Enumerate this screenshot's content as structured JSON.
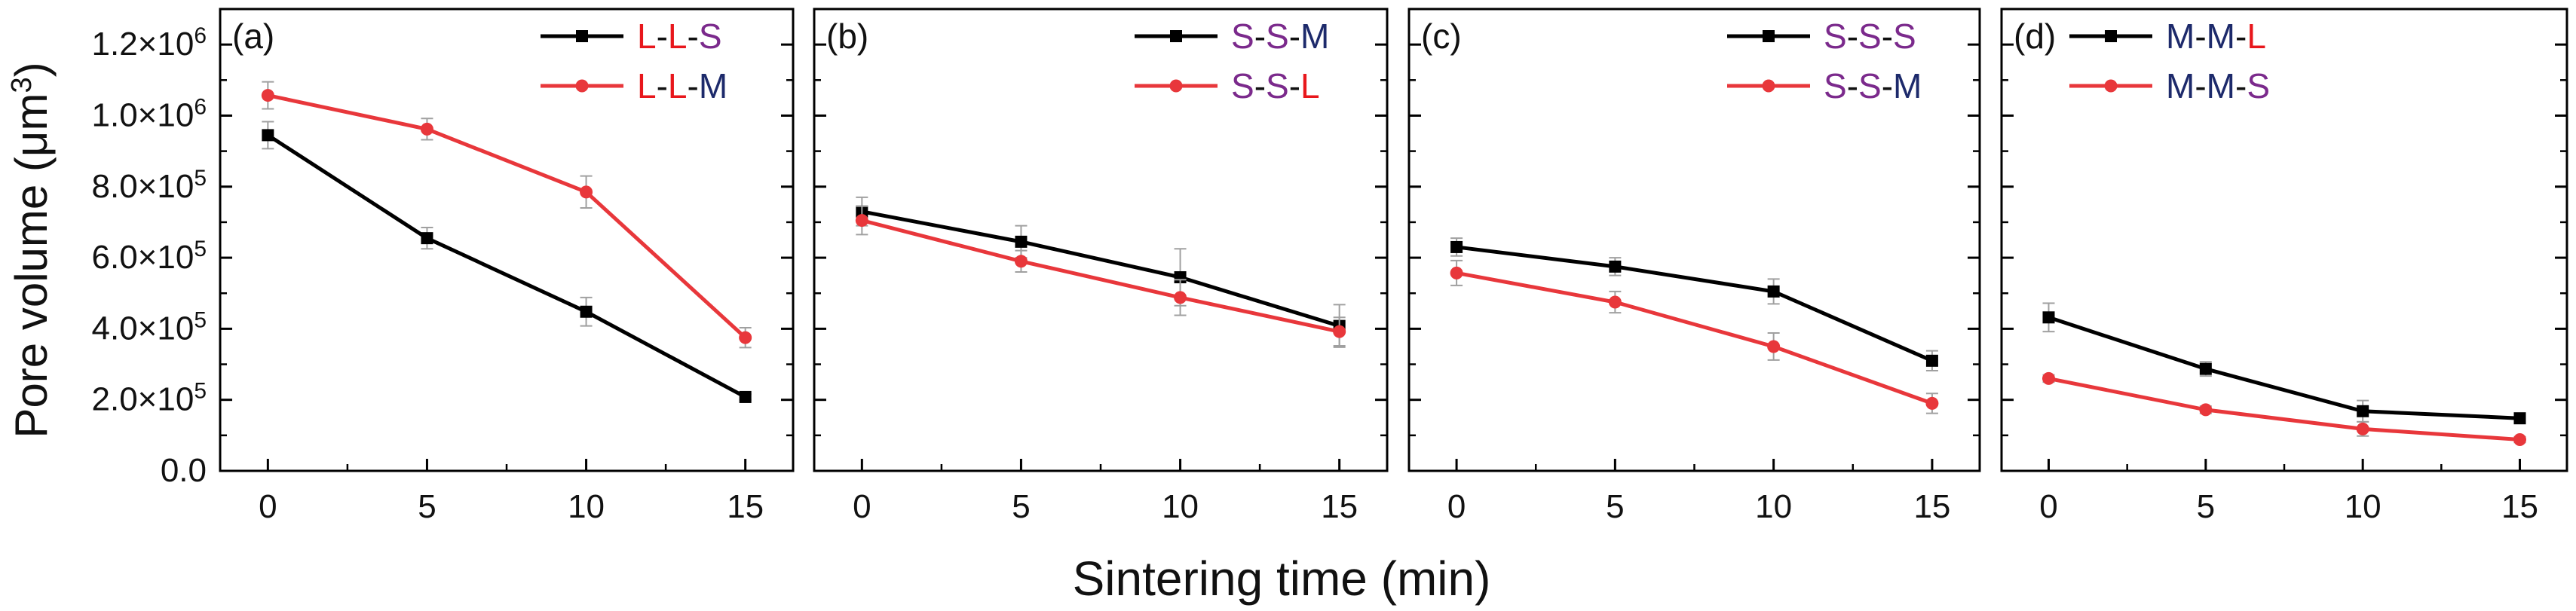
{
  "y_axis": {
    "label_main": "Pore volume (μm",
    "label_sup": "3",
    "label_close": ")",
    "ticks": [
      {
        "value": 0,
        "mantissa": "0.0",
        "exp": ""
      },
      {
        "value": 200000,
        "mantissa": "2.0×10",
        "exp": "5"
      },
      {
        "value": 400000,
        "mantissa": "4.0×10",
        "exp": "5"
      },
      {
        "value": 600000,
        "mantissa": "6.0×10",
        "exp": "5"
      },
      {
        "value": 800000,
        "mantissa": "8.0×10",
        "exp": "5"
      },
      {
        "value": 1000000,
        "mantissa": "1.0×10",
        "exp": "6"
      },
      {
        "value": 1200000,
        "mantissa": "1.2×10",
        "exp": "6"
      }
    ]
  },
  "x_axis": {
    "label": "Sintering time (min)",
    "ticks": [
      "0",
      "5",
      "10",
      "15"
    ]
  },
  "colors": {
    "black_series": "#000000",
    "red_series": "#e8373b",
    "error_bar": "#a0a0a0",
    "letter_L": "#e8171c",
    "letter_S": "#7b2a8c",
    "letter_M": "#1d2a6b"
  },
  "chart_data": [
    {
      "type": "line",
      "panel_label": "(a)",
      "x": [
        0,
        5,
        10,
        15
      ],
      "ylim": [
        0,
        1300000
      ],
      "xlim": [
        -1.5,
        16.5
      ],
      "grid": false,
      "legend_position": "top-right",
      "series": [
        {
          "name": "L-L-S",
          "parts": [
            "L",
            "L",
            "S"
          ],
          "color": "black",
          "marker": "square",
          "values": [
            945000,
            655000,
            448000,
            208000
          ],
          "errors": [
            38000,
            30000,
            40000,
            8000
          ]
        },
        {
          "name": "L-L-M",
          "parts": [
            "L",
            "L",
            "M"
          ],
          "color": "red",
          "marker": "circle",
          "values": [
            1057000,
            962000,
            785000,
            375000
          ],
          "errors": [
            38000,
            30000,
            45000,
            28000
          ]
        }
      ]
    },
    {
      "type": "line",
      "panel_label": "(b)",
      "x": [
        0,
        5,
        10,
        15
      ],
      "ylim": [
        0,
        1300000
      ],
      "xlim": [
        -1.5,
        16.5
      ],
      "grid": false,
      "legend_position": "top-right",
      "series": [
        {
          "name": "S-S-M",
          "parts": [
            "S",
            "S",
            "M"
          ],
          "color": "black",
          "marker": "square",
          "values": [
            730000,
            645000,
            545000,
            408000
          ],
          "errors": [
            40000,
            45000,
            80000,
            60000
          ]
        },
        {
          "name": "S-S-L",
          "parts": [
            "S",
            "S",
            "L"
          ],
          "color": "red",
          "marker": "circle",
          "values": [
            705000,
            590000,
            488000,
            392000
          ],
          "errors": [
            40000,
            30000,
            50000,
            40000
          ]
        }
      ]
    },
    {
      "type": "line",
      "panel_label": "(c)",
      "x": [
        0,
        5,
        10,
        15
      ],
      "ylim": [
        0,
        1300000
      ],
      "xlim": [
        -1.5,
        16.5
      ],
      "grid": false,
      "legend_position": "top-right",
      "series": [
        {
          "name": "S-S-S",
          "parts": [
            "S",
            "S",
            "S"
          ],
          "color": "black",
          "marker": "square",
          "values": [
            630000,
            575000,
            505000,
            310000
          ],
          "errors": [
            25000,
            25000,
            35000,
            28000
          ]
        },
        {
          "name": "S-S-M",
          "parts": [
            "S",
            "S",
            "M"
          ],
          "color": "red",
          "marker": "circle",
          "values": [
            557000,
            475000,
            350000,
            190000
          ],
          "errors": [
            35000,
            30000,
            38000,
            28000
          ]
        }
      ]
    },
    {
      "type": "line",
      "panel_label": "(d)",
      "x": [
        0,
        5,
        10,
        15
      ],
      "ylim": [
        0,
        1300000
      ],
      "xlim": [
        -1.5,
        16.5
      ],
      "grid": false,
      "legend_position": "top-left",
      "series": [
        {
          "name": "M-M-L",
          "parts": [
            "M",
            "M",
            "L"
          ],
          "color": "black",
          "marker": "square",
          "values": [
            432000,
            287000,
            168000,
            148000
          ],
          "errors": [
            40000,
            20000,
            30000,
            8000
          ]
        },
        {
          "name": "M-M-S",
          "parts": [
            "M",
            "M",
            "S"
          ],
          "color": "red",
          "marker": "circle",
          "values": [
            260000,
            172000,
            118000,
            88000
          ],
          "errors": [
            10000,
            10000,
            20000,
            8000
          ]
        }
      ]
    }
  ]
}
